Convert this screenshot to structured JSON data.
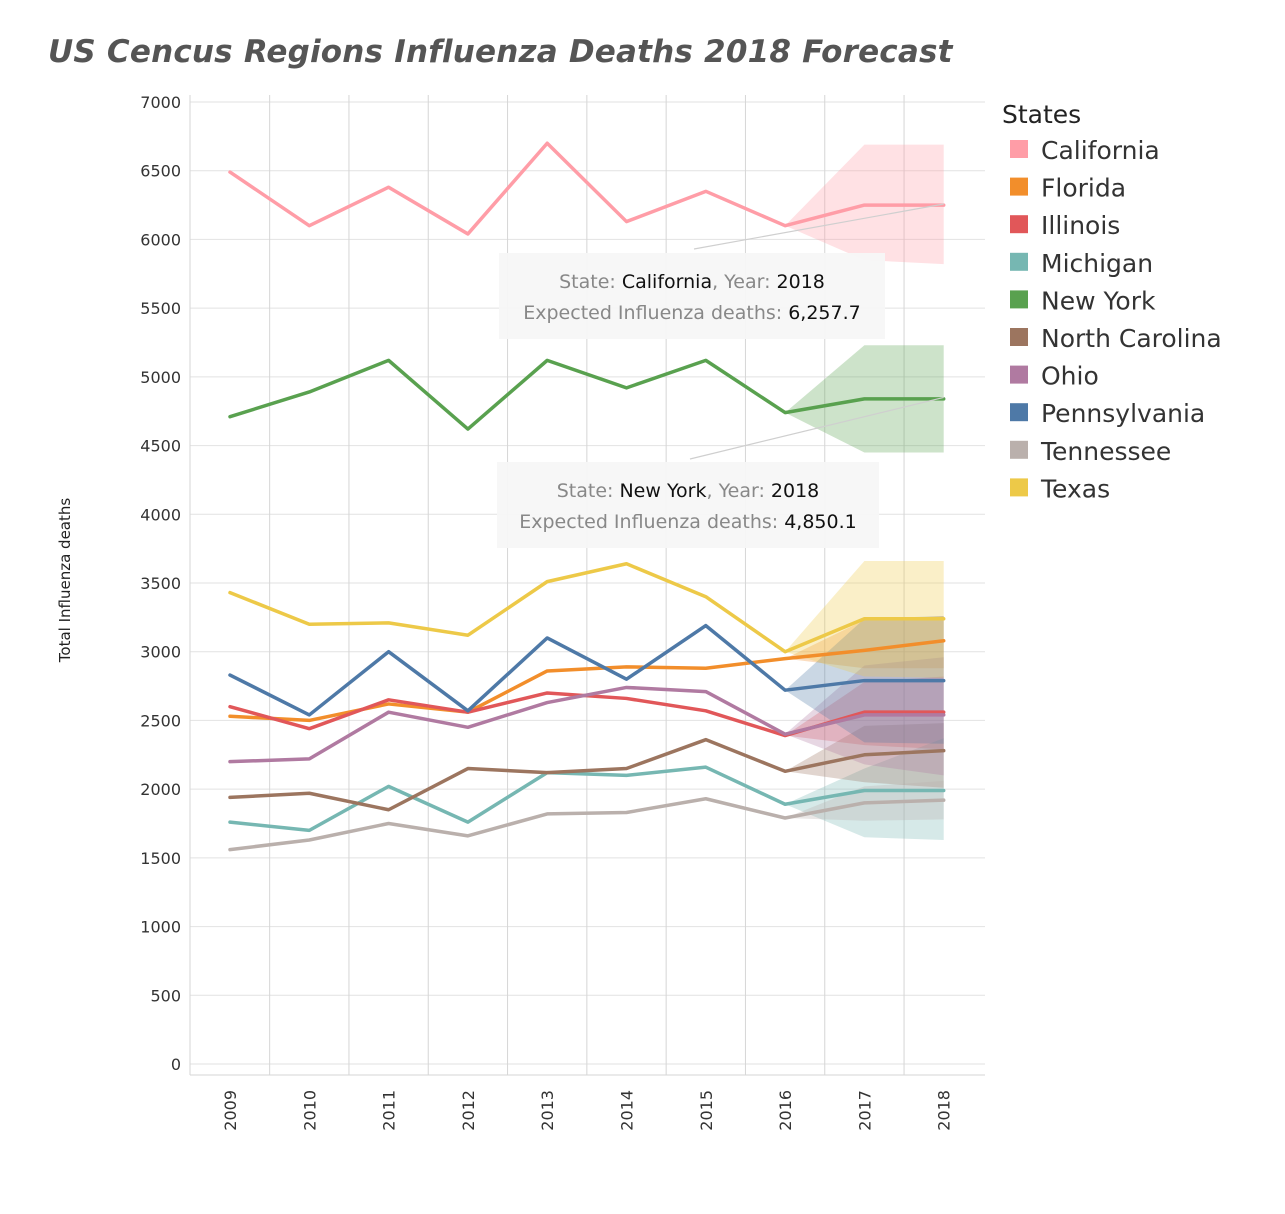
{
  "chart_data": {
    "type": "line",
    "title": "US Cencus Regions Influenza Deaths 2018 Forecast",
    "ylabel": "Total Influenza deaths",
    "xlabel": "",
    "ylim": [
      0,
      7000
    ],
    "y_ticks": [
      0,
      500,
      1000,
      1500,
      2000,
      2500,
      3000,
      3500,
      4000,
      4500,
      5000,
      5500,
      6000,
      6500,
      7000
    ],
    "x": [
      "2009",
      "2010",
      "2011",
      "2012",
      "2013",
      "2014",
      "2015",
      "2016",
      "2017",
      "2018"
    ],
    "forecast_start_index": 7,
    "legend": {
      "title": "States",
      "position": "right"
    },
    "series": [
      {
        "name": "California",
        "color": "#ff9da7",
        "values": [
          6490,
          6100,
          6380,
          6040,
          6700,
          6130,
          6350,
          6100,
          6250,
          6250
        ],
        "band_lower": [
          6100,
          5850,
          5820
        ],
        "band_upper": [
          6100,
          6690,
          6690
        ]
      },
      {
        "name": "Florida",
        "color": "#f28e2b",
        "values": [
          2530,
          2500,
          2620,
          2560,
          2860,
          2890,
          2880,
          2950,
          3010,
          3080
        ],
        "band_lower": [
          2950,
          2880,
          2880
        ],
        "band_upper": [
          2950,
          3230,
          3260
        ]
      },
      {
        "name": "Illinois",
        "color": "#e15759",
        "values": [
          2600,
          2440,
          2650,
          2560,
          2700,
          2660,
          2570,
          2390,
          2560,
          2560
        ],
        "band_lower": [
          2390,
          2320,
          2290
        ],
        "band_upper": [
          2390,
          2780,
          2820
        ]
      },
      {
        "name": "Michigan",
        "color": "#76b7b2",
        "values": [
          1760,
          1700,
          2020,
          1760,
          2120,
          2100,
          2160,
          1890,
          1990,
          1990
        ],
        "band_lower": [
          1890,
          1650,
          1630
        ],
        "band_upper": [
          1890,
          2150,
          2370
        ]
      },
      {
        "name": "New York",
        "color": "#59a14f",
        "values": [
          4710,
          4890,
          5120,
          4620,
          5120,
          4920,
          5120,
          4740,
          4840,
          4840
        ],
        "band_lower": [
          4740,
          4450,
          4450
        ],
        "band_upper": [
          4740,
          5230,
          5230
        ]
      },
      {
        "name": "North Carolina",
        "color": "#9c755f",
        "values": [
          1940,
          1970,
          1850,
          2150,
          2120,
          2150,
          2360,
          2130,
          2250,
          2280
        ],
        "band_lower": [
          2130,
          2050,
          2010
        ],
        "band_upper": [
          2130,
          2460,
          2480
        ]
      },
      {
        "name": "Ohio",
        "color": "#b07aa1",
        "values": [
          2200,
          2220,
          2560,
          2450,
          2630,
          2740,
          2710,
          2400,
          2540,
          2540
        ],
        "band_lower": [
          2400,
          2180,
          2100
        ],
        "band_upper": [
          2400,
          2900,
          2960
        ]
      },
      {
        "name": "Pennsylvania",
        "color": "#4e79a7",
        "values": [
          2830,
          2540,
          3000,
          2570,
          3100,
          2800,
          3190,
          2720,
          2790,
          2790
        ],
        "band_lower": [
          2720,
          2340,
          2330
        ],
        "band_upper": [
          2720,
          3240,
          3260
        ]
      },
      {
        "name": "Tennessee",
        "color": "#bab0ac",
        "values": [
          1560,
          1630,
          1750,
          1660,
          1820,
          1830,
          1930,
          1790,
          1900,
          1920
        ],
        "band_lower": [
          1790,
          1770,
          1780
        ],
        "band_upper": [
          1790,
          2020,
          2060
        ]
      },
      {
        "name": "Texas",
        "color": "#edc948",
        "values": [
          3430,
          3200,
          3210,
          3120,
          3510,
          3640,
          3400,
          3000,
          3240,
          3240
        ],
        "band_lower": [
          3000,
          2820,
          2810
        ],
        "band_upper": [
          3000,
          3660,
          3660
        ]
      }
    ],
    "annotations": [
      {
        "series": "California",
        "state_label": "State: ",
        "state": "California",
        "year_label": ", Year: ",
        "year": "2018",
        "value_label": "Expected Influenza deaths: ",
        "value": "6,257.7",
        "target_x": "2018",
        "target_y": 6257.7
      },
      {
        "series": "New York",
        "state_label": "State: ",
        "state": "New York",
        "year_label": ", Year: ",
        "year": "2018",
        "value_label": "Expected Influenza deaths: ",
        "value": "4,850.1",
        "target_x": "2018",
        "target_y": 4850.1
      }
    ]
  }
}
